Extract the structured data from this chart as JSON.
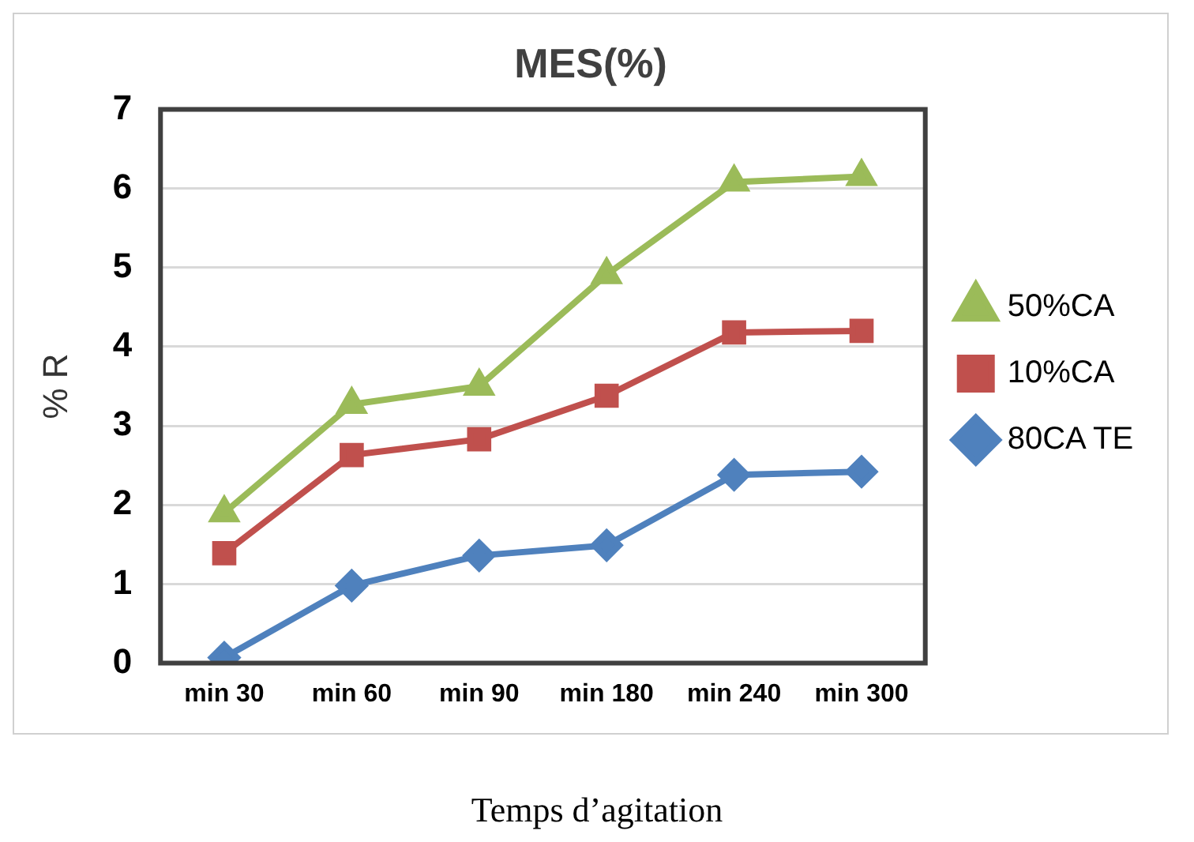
{
  "chart_data": {
    "type": "line",
    "title": "MES(%)",
    "xlabel": "Temps d’agitation",
    "ylabel": "% R",
    "categories": [
      "min 30",
      "min 60",
      "min 90",
      "min 180",
      "min 240",
      "min 300"
    ],
    "series": [
      {
        "name": "50%CA",
        "color": "#9bbb59",
        "marker": "triangle",
        "values": [
          1.9,
          3.27,
          3.5,
          4.91,
          6.08,
          6.15
        ]
      },
      {
        "name": "10%CA",
        "color": "#c0504d",
        "marker": "square",
        "values": [
          1.39,
          2.63,
          2.83,
          3.38,
          4.18,
          4.2
        ]
      },
      {
        "name": "80CA TE",
        "color": "#4f81bd",
        "marker": "diamond",
        "values": [
          0.07,
          0.98,
          1.36,
          1.49,
          2.38,
          2.42
        ]
      }
    ],
    "ylim": [
      0,
      7
    ],
    "yticks": [
      0,
      1,
      2,
      3,
      4,
      5,
      6,
      7
    ],
    "grid": "y",
    "legend": "right",
    "line_style": "solid"
  }
}
